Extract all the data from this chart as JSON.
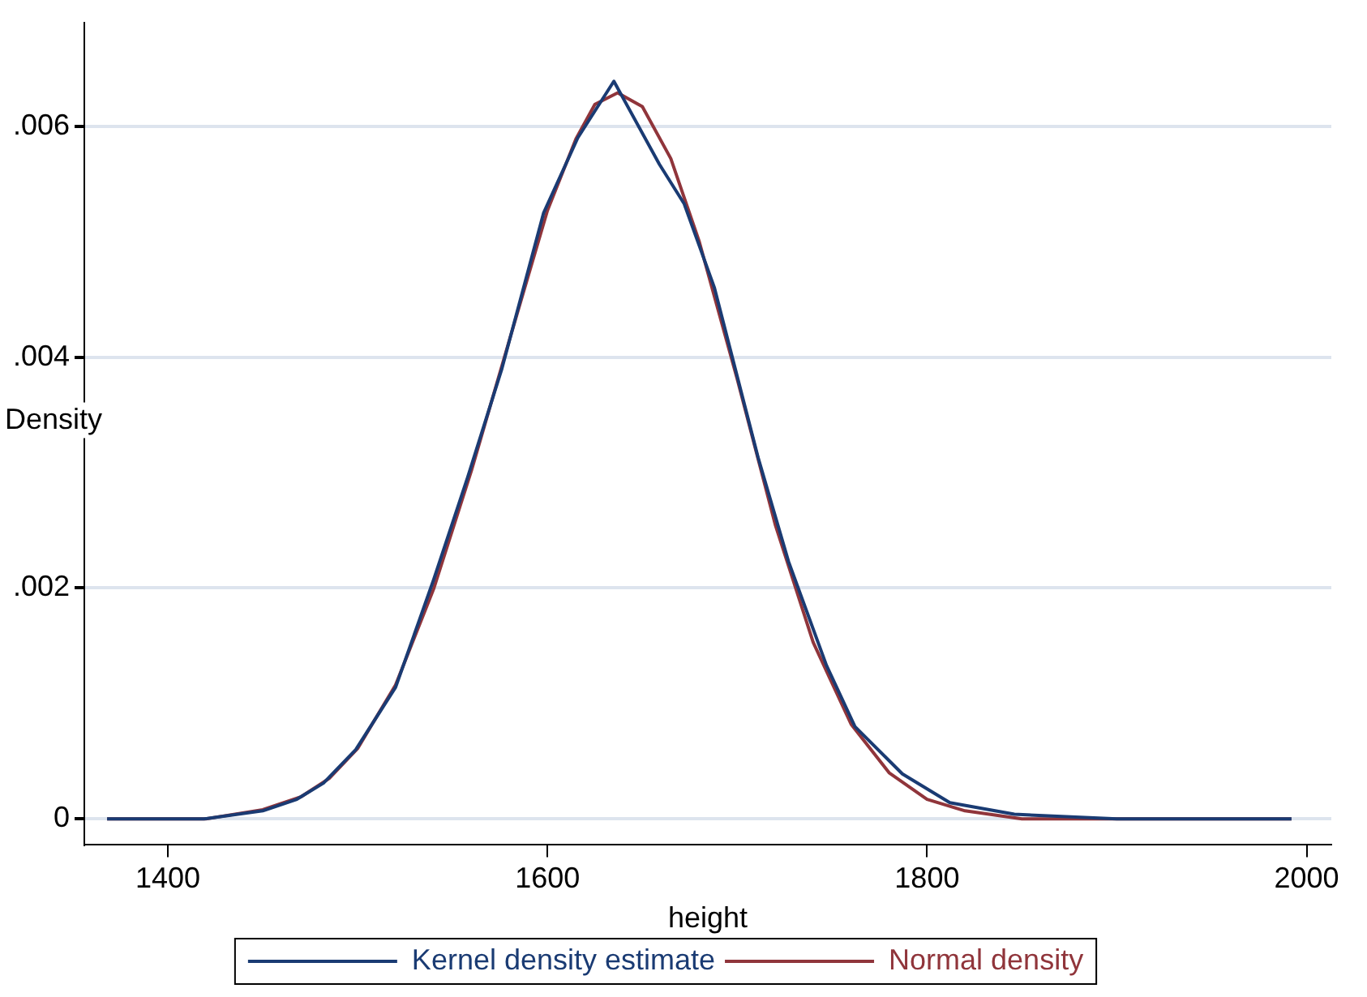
{
  "chart_data": {
    "type": "line",
    "xlabel": "height",
    "ylabel": "Density",
    "xlim": [
      1356,
      2013
    ],
    "xticks": [
      1400,
      1600,
      1800,
      2000
    ],
    "ylim": [
      -0.00022,
      0.0069
    ],
    "yticks": [
      {
        "value": 0,
        "label": "0"
      },
      {
        "value": 0.002,
        "label": ".002"
      },
      {
        "value": 0.004,
        "label": ".004"
      },
      {
        "value": 0.006,
        "label": ".006"
      }
    ],
    "grid": "y",
    "legend": "bottom",
    "marker": "none",
    "line_style": "solid",
    "series": [
      {
        "name": "Kernel density estimate",
        "color": "#1a3b73",
        "x": [
          1368,
          1419,
          1450,
          1468,
          1482,
          1499,
          1520,
          1540,
          1558,
          1576,
          1598,
          1616,
          1635,
          1659,
          1672,
          1688,
          1711,
          1727,
          1747,
          1762,
          1787,
          1812,
          1846,
          1900,
          1992
        ],
        "values": [
          0,
          0,
          7e-05,
          0.00017,
          0.00031,
          0.0006,
          0.00114,
          0.00207,
          0.00296,
          0.0039,
          0.00525,
          0.0059,
          0.00639,
          0.00567,
          0.00533,
          0.0046,
          0.00313,
          0.00223,
          0.00133,
          0.0008,
          0.00039,
          0.00014,
          4e-05,
          0,
          0
        ]
      },
      {
        "name": "Normal density",
        "color": "#90353b",
        "x": [
          1368,
          1420,
          1450,
          1470,
          1485,
          1500,
          1520,
          1540,
          1560,
          1580,
          1600,
          1615,
          1625,
          1637,
          1650,
          1665,
          1680,
          1700,
          1720,
          1740,
          1760,
          1780,
          1800,
          1820,
          1850,
          1900,
          1992
        ],
        "values": [
          0,
          0,
          8e-05,
          0.00019,
          0.00035,
          0.00061,
          0.00116,
          0.00199,
          0.00302,
          0.00415,
          0.00527,
          0.00589,
          0.00619,
          0.00629,
          0.00617,
          0.00572,
          0.005,
          0.00381,
          0.00255,
          0.00153,
          0.00082,
          0.0004,
          0.00017,
          7e-05,
          0,
          0,
          0
        ]
      }
    ]
  }
}
